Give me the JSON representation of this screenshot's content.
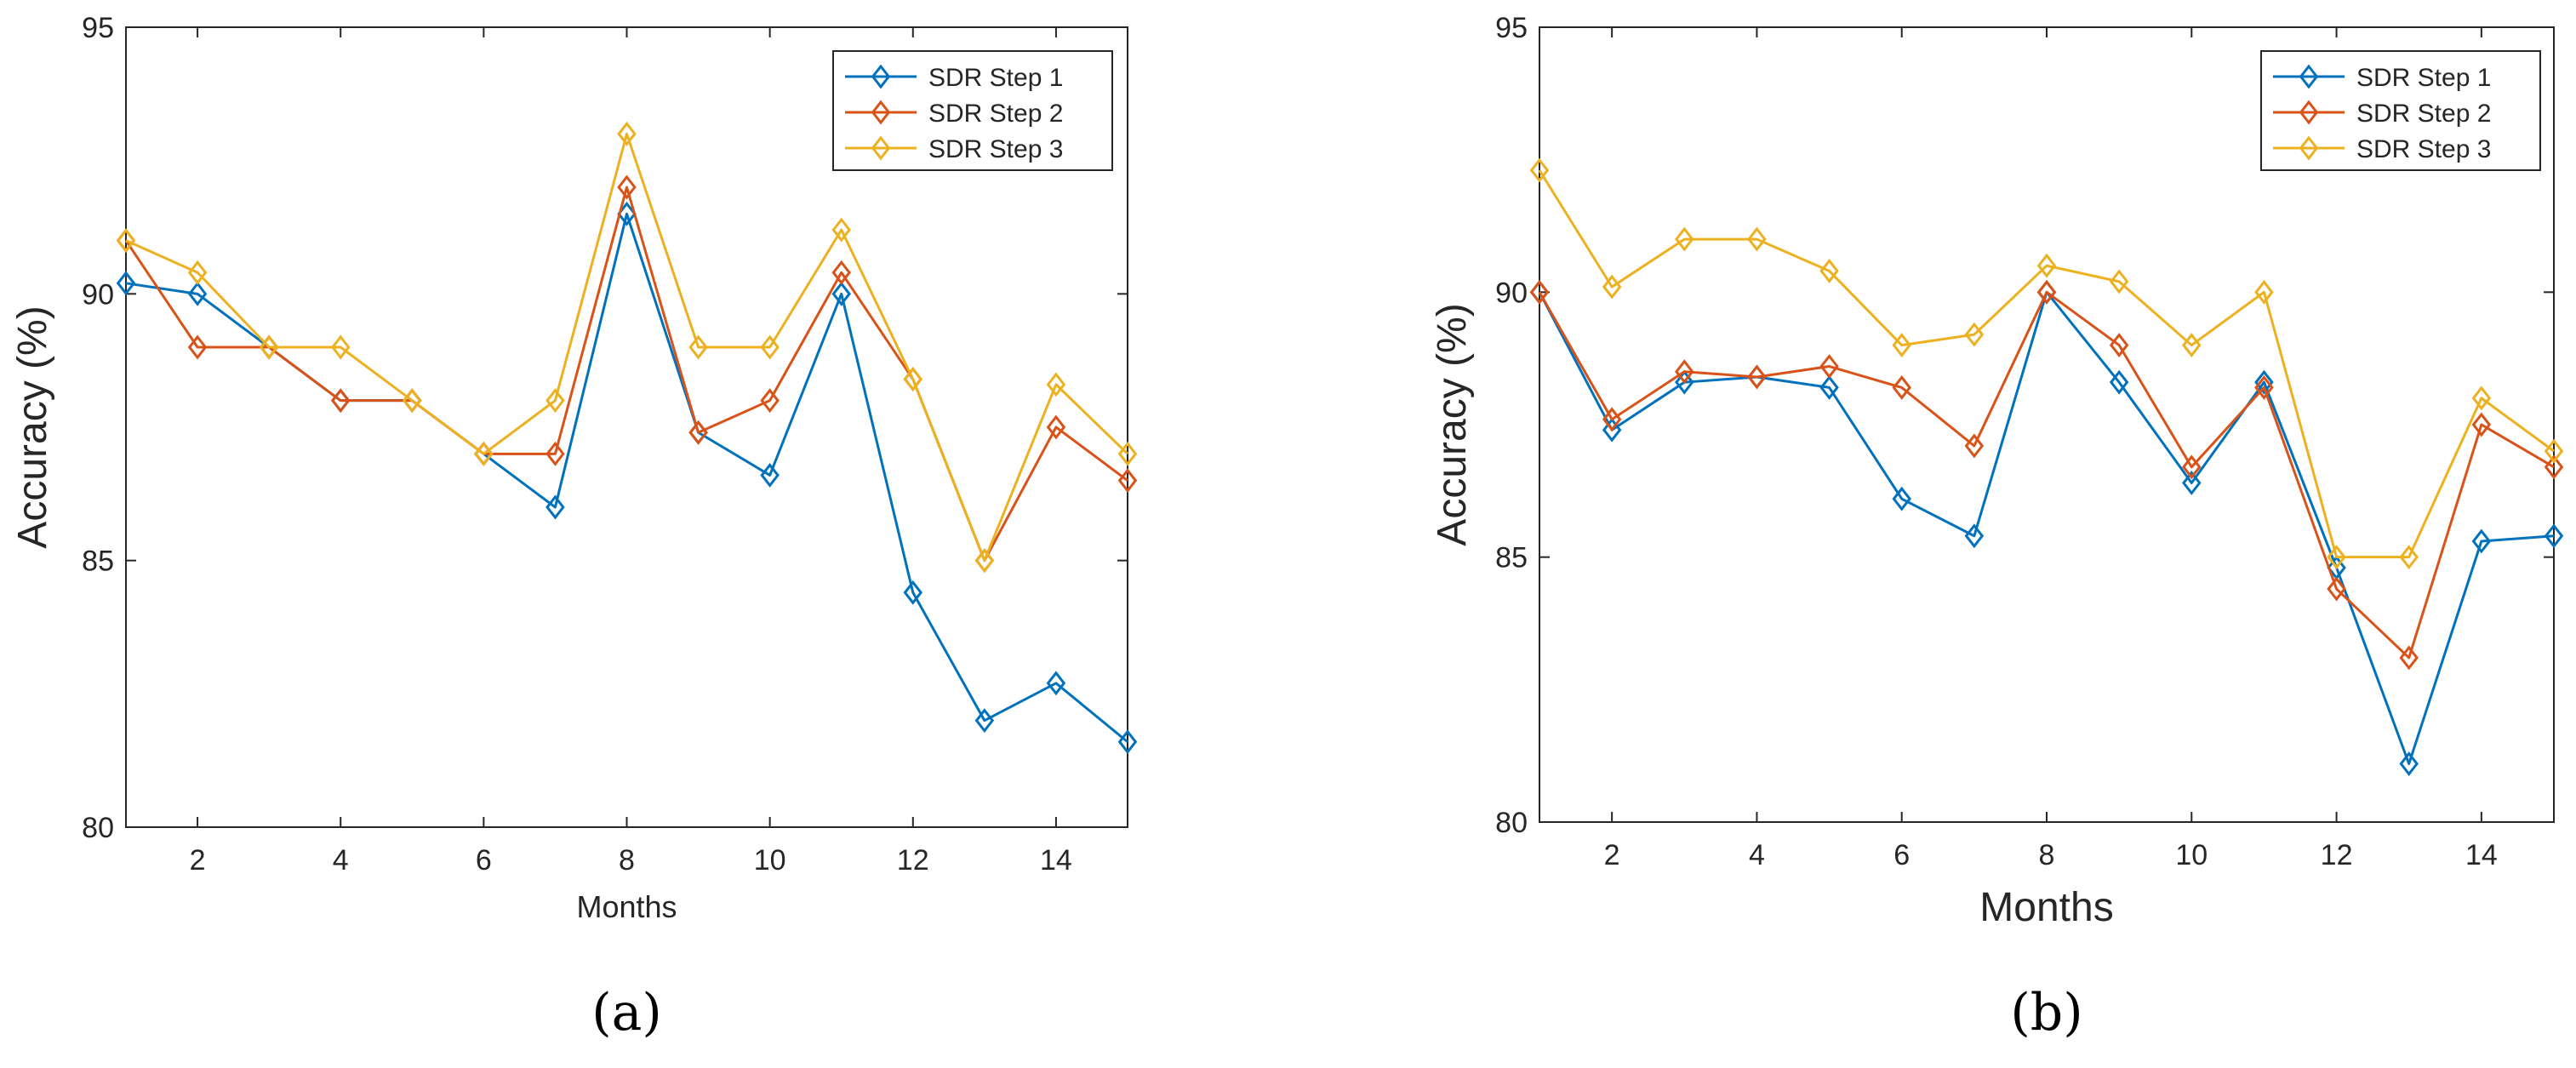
{
  "colors": {
    "series": [
      "#0072BD",
      "#D95319",
      "#EDB120"
    ],
    "axis": "#262626",
    "background": "#ffffff"
  },
  "chart_data": [
    {
      "type": "line",
      "panel_label": "(a)",
      "title": "",
      "xlabel": "Months",
      "ylabel": "Accuracy (%)",
      "xlim": [
        1,
        15
      ],
      "ylim": [
        80,
        95
      ],
      "xticks": [
        2,
        4,
        6,
        8,
        10,
        12,
        14
      ],
      "yticks": [
        80,
        85,
        90,
        95
      ],
      "x": [
        1,
        2,
        3,
        4,
        5,
        6,
        7,
        8,
        9,
        10,
        11,
        12,
        13,
        14,
        15
      ],
      "marker": "diamond",
      "legend_position": "top-right",
      "series": [
        {
          "name": "SDR Step 1",
          "values": [
            90.2,
            90.0,
            89.0,
            88.0,
            88.0,
            87.0,
            86.0,
            91.5,
            87.4,
            86.6,
            90.0,
            84.4,
            82.0,
            82.7,
            81.6
          ]
        },
        {
          "name": "SDR Step 2",
          "values": [
            91.0,
            89.0,
            89.0,
            88.0,
            88.0,
            87.0,
            87.0,
            92.0,
            87.4,
            88.0,
            90.4,
            88.4,
            85.0,
            87.5,
            86.5
          ]
        },
        {
          "name": "SDR Step 3",
          "values": [
            91.0,
            90.4,
            89.0,
            89.0,
            88.0,
            87.0,
            88.0,
            93.0,
            89.0,
            89.0,
            91.2,
            88.4,
            85.0,
            88.3,
            87.0
          ]
        }
      ]
    },
    {
      "type": "line",
      "panel_label": "(b)",
      "title": "",
      "xlabel": "Months",
      "ylabel": "Accuracy (%)",
      "xlim": [
        1,
        15
      ],
      "ylim": [
        80,
        95
      ],
      "xticks": [
        2,
        4,
        6,
        8,
        10,
        12,
        14
      ],
      "yticks": [
        80,
        85,
        90,
        95
      ],
      "x": [
        1,
        2,
        3,
        4,
        5,
        6,
        7,
        8,
        9,
        10,
        11,
        12,
        13,
        14,
        15
      ],
      "marker": "diamond",
      "legend_position": "top-right",
      "series": [
        {
          "name": "SDR Step 1",
          "values": [
            90.0,
            87.4,
            88.3,
            88.4,
            88.2,
            86.1,
            85.4,
            90.0,
            88.3,
            86.4,
            88.3,
            84.8,
            81.1,
            85.3,
            85.4
          ]
        },
        {
          "name": "SDR Step 2",
          "values": [
            90.0,
            87.6,
            88.5,
            88.4,
            88.6,
            88.2,
            87.1,
            90.0,
            89.0,
            86.7,
            88.2,
            84.4,
            83.1,
            87.5,
            86.7
          ]
        },
        {
          "name": "SDR Step 3",
          "values": [
            92.3,
            90.1,
            91.0,
            91.0,
            90.4,
            89.0,
            89.2,
            90.5,
            90.2,
            89.0,
            90.0,
            85.0,
            85.0,
            88.0,
            87.0
          ]
        }
      ]
    }
  ]
}
